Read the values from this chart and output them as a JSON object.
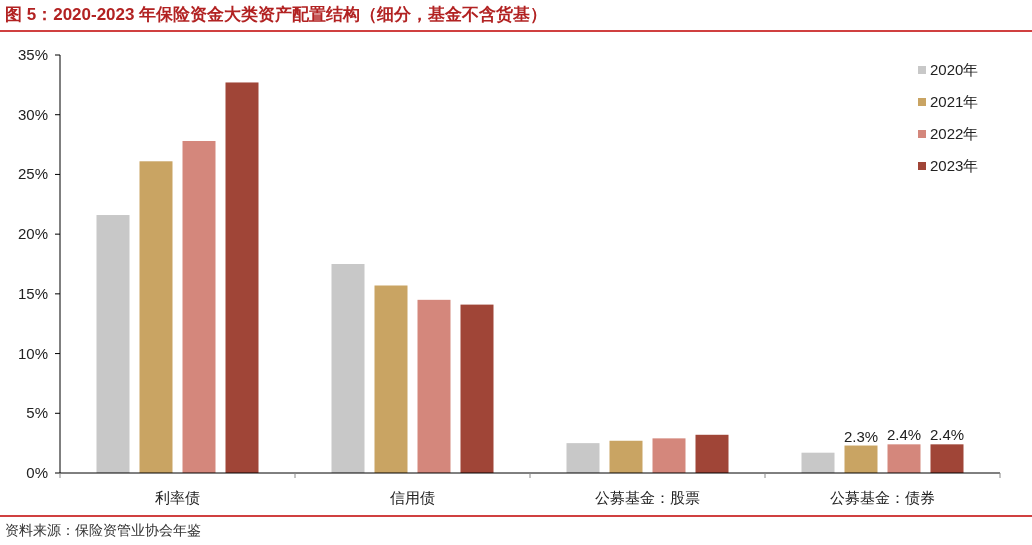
{
  "chart_data": {
    "type": "bar",
    "title": "图 5：2020-2023 年保险资金大类资产配置结构（细分，基金不含货基）",
    "categories": [
      "利率债",
      "信用债",
      "公募基金：股票",
      "公募基金：债券"
    ],
    "series": [
      {
        "name": "2020年",
        "color": "#c8c8c8",
        "values": [
          21.6,
          17.5,
          2.5,
          1.7
        ]
      },
      {
        "name": "2021年",
        "color": "#c9a463",
        "values": [
          26.1,
          15.7,
          2.7,
          2.3
        ],
        "value_labels": [
          null,
          null,
          null,
          "2.3%"
        ]
      },
      {
        "name": "2022年",
        "color": "#d4877c",
        "values": [
          27.8,
          14.5,
          2.9,
          2.4
        ],
        "value_labels": [
          null,
          null,
          null,
          "2.4%"
        ]
      },
      {
        "name": "2023年",
        "color": "#a04537",
        "values": [
          32.7,
          14.1,
          3.2,
          2.4
        ],
        "value_labels": [
          null,
          null,
          null,
          "2.4%"
        ]
      }
    ],
    "ylim": [
      0,
      35
    ],
    "yticks": [
      {
        "value": 0,
        "label": "0%"
      },
      {
        "value": 5,
        "label": "5%"
      },
      {
        "value": 10,
        "label": "10%"
      },
      {
        "value": 15,
        "label": "15%"
      },
      {
        "value": 20,
        "label": "20%"
      },
      {
        "value": 25,
        "label": "25%"
      },
      {
        "value": 30,
        "label": "30%"
      },
      {
        "value": 35,
        "label": "35%"
      }
    ],
    "grid": false,
    "legend": "top right",
    "annotations": [
      "资料来源：保险资管业协会年鉴"
    ]
  }
}
